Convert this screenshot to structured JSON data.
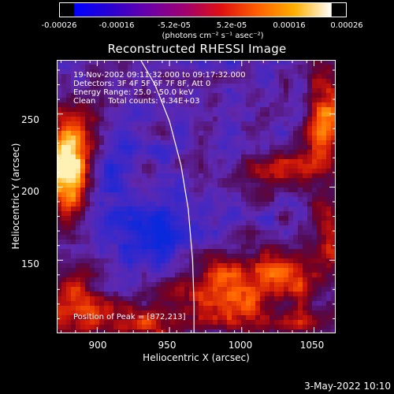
{
  "colorbar": {
    "ticks": [
      "-0.00026",
      "-0.00016",
      "-5.2e-05",
      "5.2e-05",
      "0.00016",
      "0.00026"
    ],
    "unit_label": "(photons cm⁻² s⁻¹ asec⁻²)",
    "colors": [
      "#0000ff",
      "#2a00d0",
      "#6a00a8",
      "#a00070",
      "#e01010",
      "#ff6000",
      "#ffb000",
      "#ffffff"
    ]
  },
  "title": "Reconstructed RHESSI Image",
  "info": {
    "time": "19-Nov-2002 09:11:32.000 to 09:17:32.000",
    "detectors": "Detectors: 3F 4F 5F 6F 7F 8F, Att 0",
    "energy": "Energy Range: 25.0 - 50.0 keV",
    "clean": "Clean     Total counts: 4.34E+03"
  },
  "peak": "Position of Peak = [872,213]",
  "axes": {
    "xlabel": "Heliocentric X (arcsec)",
    "ylabel": "Heliocentric Y (arcsec)",
    "xticks": [
      "900",
      "950",
      "1000",
      "1050"
    ],
    "yticks": [
      "250",
      "200",
      "150"
    ]
  },
  "datestamp": "3-May-2022 10:10",
  "chart_data": {
    "type": "heatmap",
    "title": "Reconstructed RHESSI Image",
    "xlabel": "Heliocentric X (arcsec)",
    "ylabel": "Heliocentric Y (arcsec)",
    "xlim": [
      872,
      1065
    ],
    "ylim": [
      100,
      287
    ],
    "xticks": [
      900,
      950,
      1000,
      1050
    ],
    "yticks": [
      150,
      200,
      250
    ],
    "colorbar_range": [
      -0.00026,
      0.00026
    ],
    "peak_position": [
      872,
      213
    ],
    "limb_curve": [
      [
        930,
        287
      ],
      [
        940,
        270
      ],
      [
        950,
        245
      ],
      [
        958,
        215
      ],
      [
        963,
        185
      ],
      [
        966,
        150
      ],
      [
        967,
        120
      ],
      [
        967,
        100
      ]
    ]
  }
}
